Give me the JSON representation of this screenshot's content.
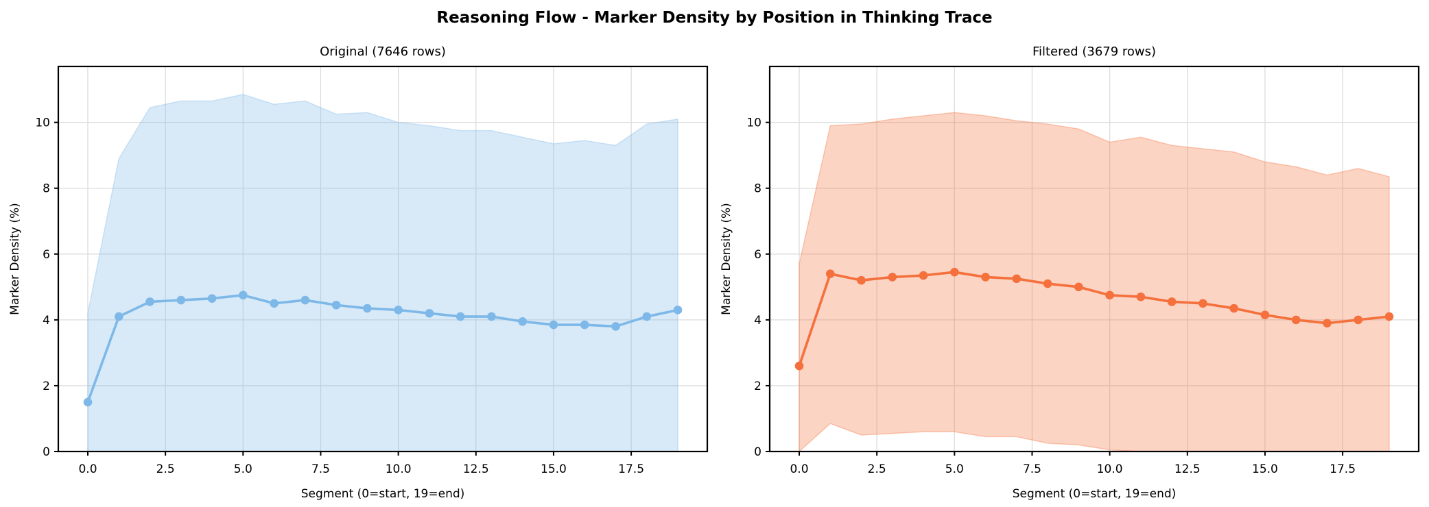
{
  "figure": {
    "suptitle": "Reasoning Flow - Marker Density by Position in Thinking Trace",
    "background": "#ffffff",
    "text_color": "#000000",
    "grid_color": "#dcdcdc",
    "spine_color": "#000000"
  },
  "chart_data": [
    {
      "type": "line",
      "title": "Original (7646 rows)",
      "xlabel": "Segment (0=start, 19=end)",
      "ylabel": "Marker Density (%)",
      "color": "#7EB8E8",
      "band_fill_opacity": 0.3,
      "x": [
        0,
        1,
        2,
        3,
        4,
        5,
        6,
        7,
        8,
        9,
        10,
        11,
        12,
        13,
        14,
        15,
        16,
        17,
        18,
        19
      ],
      "series": [
        {
          "name": "mean_marker_density",
          "values": [
            1.5,
            4.1,
            4.55,
            4.6,
            4.65,
            4.75,
            4.5,
            4.6,
            4.45,
            4.35,
            4.3,
            4.2,
            4.1,
            4.1,
            3.95,
            3.85,
            3.85,
            3.8,
            4.1,
            4.3
          ]
        },
        {
          "name": "band_upper",
          "values": [
            4.2,
            8.9,
            10.45,
            10.65,
            10.65,
            10.85,
            10.55,
            10.65,
            10.25,
            10.3,
            10.0,
            9.9,
            9.75,
            9.75,
            9.55,
            9.35,
            9.45,
            9.3,
            9.95,
            10.1
          ]
        },
        {
          "name": "band_lower",
          "values": [
            0,
            0,
            0,
            0,
            0,
            0,
            0,
            0,
            0,
            0,
            0,
            0,
            0,
            0,
            0,
            0,
            0,
            0,
            0,
            0
          ]
        }
      ],
      "xlim": [
        -0.95,
        19.95
      ],
      "ylim": [
        0,
        11.7
      ],
      "xticks": [
        0,
        2.5,
        5,
        7.5,
        10,
        12.5,
        15,
        17.5
      ],
      "xtick_labels": [
        "0.0",
        "2.5",
        "5.0",
        "7.5",
        "10.0",
        "12.5",
        "15.0",
        "17.5"
      ],
      "yticks": [
        0,
        2,
        4,
        6,
        8,
        10
      ],
      "ytick_labels": [
        "0",
        "2",
        "4",
        "6",
        "8",
        "10"
      ],
      "grid": true,
      "legend": "none"
    },
    {
      "type": "line",
      "title": "Filtered (3679 rows)",
      "xlabel": "Segment (0=start, 19=end)",
      "ylabel": "Marker Density (%)",
      "color": "#F4703C",
      "band_fill_opacity": 0.3,
      "x": [
        0,
        1,
        2,
        3,
        4,
        5,
        6,
        7,
        8,
        9,
        10,
        11,
        12,
        13,
        14,
        15,
        16,
        17,
        18,
        19
      ],
      "series": [
        {
          "name": "mean_marker_density",
          "values": [
            2.6,
            5.4,
            5.2,
            5.3,
            5.35,
            5.45,
            5.3,
            5.25,
            5.1,
            5.0,
            4.75,
            4.7,
            4.55,
            4.5,
            4.35,
            4.15,
            4.0,
            3.9,
            4.0,
            4.1
          ]
        },
        {
          "name": "band_upper",
          "values": [
            5.7,
            9.9,
            9.95,
            10.1,
            10.2,
            10.3,
            10.2,
            10.05,
            9.95,
            9.8,
            9.4,
            9.55,
            9.3,
            9.2,
            9.1,
            8.8,
            8.65,
            8.4,
            8.6,
            8.35
          ]
        },
        {
          "name": "band_lower",
          "values": [
            0,
            0.85,
            0.5,
            0.55,
            0.6,
            0.6,
            0.45,
            0.45,
            0.25,
            0.2,
            0.05,
            0,
            0,
            0,
            0,
            0,
            0,
            0,
            0,
            0
          ]
        }
      ],
      "xlim": [
        -0.95,
        19.95
      ],
      "ylim": [
        0,
        11.7
      ],
      "xticks": [
        0,
        2.5,
        5,
        7.5,
        10,
        12.5,
        15,
        17.5
      ],
      "xtick_labels": [
        "0.0",
        "2.5",
        "5.0",
        "7.5",
        "10.0",
        "12.5",
        "15.0",
        "17.5"
      ],
      "yticks": [
        0,
        2,
        4,
        6,
        8,
        10
      ],
      "ytick_labels": [
        "0",
        "2",
        "4",
        "6",
        "8",
        "10"
      ],
      "grid": true,
      "legend": "none"
    }
  ]
}
